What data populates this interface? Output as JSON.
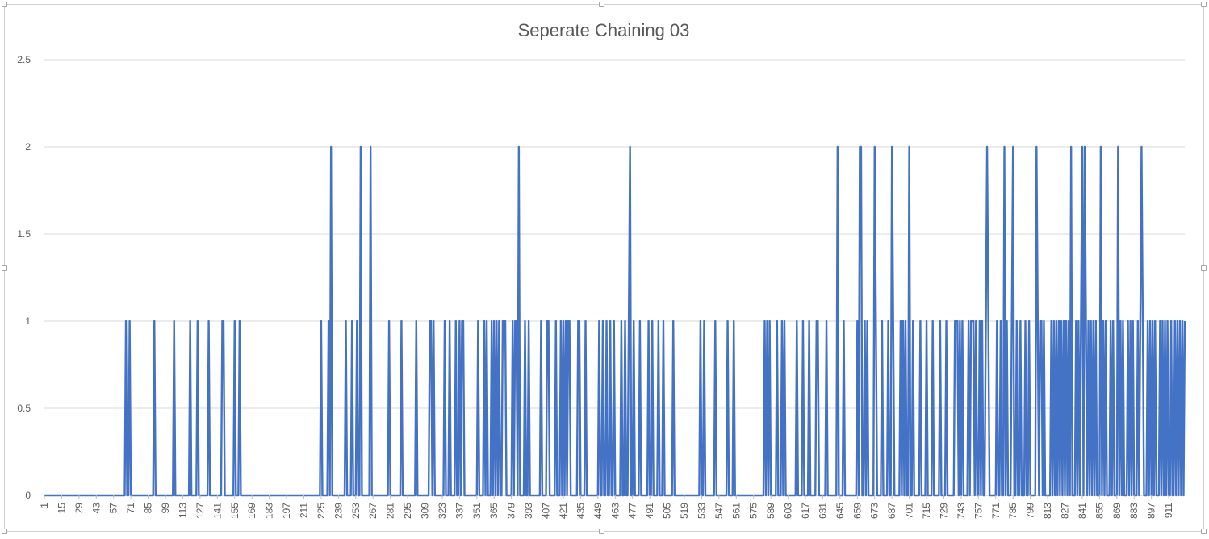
{
  "chart_data": {
    "type": "line",
    "title": "Seperate Chaining 03",
    "xlabel": "",
    "ylabel": "",
    "ylim": [
      0,
      2.5
    ],
    "yticks": [
      "0",
      "0.5",
      "1",
      "1.5",
      "2",
      "2.5"
    ],
    "x_start": 1,
    "x_end": 924,
    "x_tick_step": 14,
    "x_tick_labels": [
      "1",
      "15",
      "29",
      "43",
      "57",
      "71",
      "85",
      "99",
      "113",
      "127",
      "141",
      "155",
      "169",
      "183",
      "197",
      "211",
      "225",
      "239",
      "253",
      "267",
      "281",
      "295",
      "309",
      "323",
      "337",
      "351",
      "365",
      "379",
      "393",
      "407",
      "421",
      "435",
      "449",
      "463",
      "477",
      "491",
      "505",
      "519",
      "533",
      "547",
      "561",
      "575",
      "589",
      "603",
      "617",
      "631",
      "645",
      "659",
      "673",
      "687",
      "701",
      "715",
      "729",
      "743",
      "757",
      "771",
      "785",
      "799",
      "813",
      "827",
      "841",
      "855",
      "869",
      "883",
      "897",
      "911"
    ],
    "grid": "horizontal",
    "legend": "none",
    "colors": {
      "series": "#4472c4",
      "grid": "#d9d9d9",
      "text": "#595959"
    },
    "series": [
      {
        "ones": [
          67,
          70,
          90,
          106,
          119,
          125,
          134,
          145,
          146,
          155,
          159,
          225,
          231,
          245,
          250,
          254,
          280,
          290,
          302,
          313,
          314,
          316,
          325,
          329,
          334,
          337,
          339,
          339,
          340,
          352,
          357,
          359,
          363,
          365,
          367,
          369,
          372,
          373,
          374,
          380,
          382,
          383,
          390,
          393,
          403,
          408,
          409,
          415,
          419,
          421,
          423,
          425,
          426,
          433,
          434,
          439,
          450,
          453,
          456,
          459,
          462,
          468,
          471,
          474,
          478,
          483,
          490,
          493,
          498,
          502,
          510,
          532,
          535,
          544,
          554,
          559,
          584,
          586,
          588,
          594,
          598,
          600,
          610,
          615,
          620,
          626,
          627,
          634,
          648,
          659,
          661,
          665,
          667,
          674,
          679,
          684,
          688,
          694,
          696,
          698,
          704,
          710,
          715,
          720,
          726,
          731,
          738,
          739,
          740,
          742,
          744,
          749,
          751,
          752,
          753,
          755,
          758,
          760,
          763,
          765,
          772,
          775,
          780,
          784,
          788,
          791,
          795,
          798,
          805,
          807,
          808,
          810,
          816,
          818,
          820,
          822,
          824,
          826,
          828,
          830,
          832,
          836,
          838,
          840,
          844,
          846,
          848,
          850,
          852,
          856,
          858,
          860,
          864,
          866,
          872,
          874,
          878,
          880,
          882,
          886,
          888,
          890,
          894,
          896,
          898,
          900,
          904,
          906,
          908,
          910,
          913,
          916,
          918,
          920,
          922,
          924
        ],
        "twos": [
          233,
          257,
          265,
          385,
          475,
          643,
          661,
          662,
          673,
          687,
          701,
          764,
          778,
          785,
          804,
          832,
          841,
          843,
          856,
          870,
          889
        ]
      }
    ]
  }
}
